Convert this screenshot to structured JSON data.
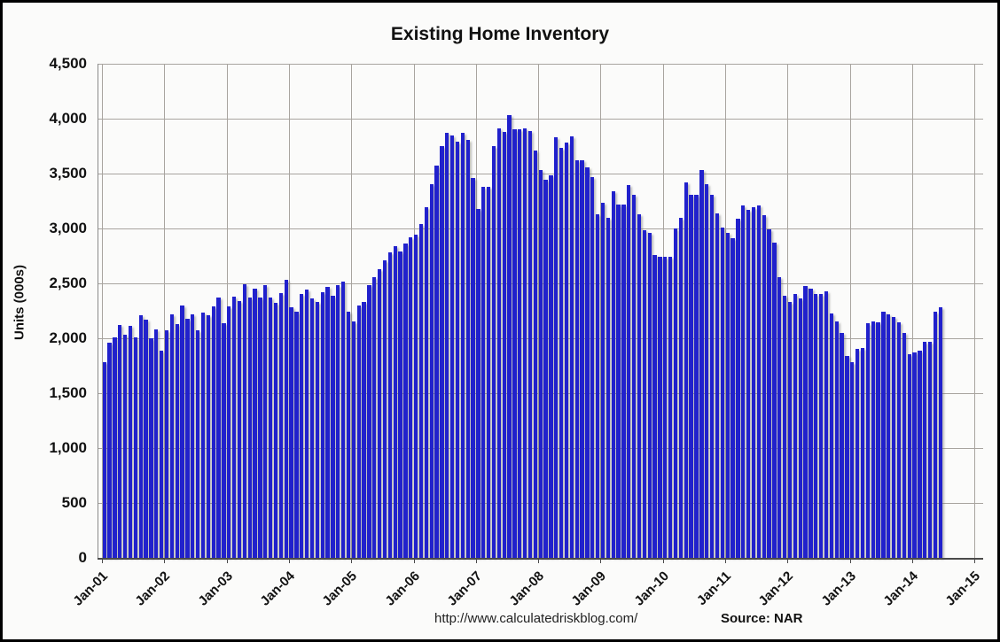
{
  "title": "Existing Home Inventory",
  "y_axis": {
    "label": "Units (000s)",
    "ticks": [
      "4,500",
      "4,000",
      "3,500",
      "3,000",
      "2,500",
      "2,000",
      "1,500",
      "1,000",
      "500",
      "0"
    ]
  },
  "x_axis": {
    "ticks": [
      "Jan-01",
      "Jan-02",
      "Jan-03",
      "Jan-04",
      "Jan-05",
      "Jan-06",
      "Jan-07",
      "Jan-08",
      "Jan-09",
      "Jan-10",
      "Jan-11",
      "Jan-12",
      "Jan-13",
      "Jan-14",
      "Jan-15"
    ]
  },
  "footer": {
    "url": "http://www.calculatedriskblog.com/",
    "source": "Source: NAR"
  },
  "colors": {
    "bar": "#2121cc",
    "grid": "#a8a49f",
    "background": "#fbfbfa",
    "border": "#000000",
    "text": "#111111"
  },
  "chart_data": {
    "type": "bar",
    "title": "Existing Home Inventory",
    "xlabel": "",
    "ylabel": "Units (000s)",
    "ylim": [
      0,
      4500
    ],
    "y_step": 500,
    "grid": true,
    "legend": "none",
    "frequency": "monthly",
    "x_start": "Jan-2001",
    "x_end": "Jun-2014",
    "source_note": "Source: NAR",
    "series": [
      {
        "name": "Existing Home Inventory (thousands of units)",
        "values": [
          1780,
          1960,
          2010,
          2120,
          2030,
          2110,
          2010,
          2210,
          2170,
          2000,
          2080,
          1890,
          2070,
          2220,
          2130,
          2300,
          2180,
          2220,
          2070,
          2230,
          2210,
          2290,
          2370,
          2140,
          2290,
          2380,
          2340,
          2490,
          2370,
          2450,
          2370,
          2480,
          2370,
          2320,
          2410,
          2530,
          2280,
          2240,
          2400,
          2440,
          2360,
          2330,
          2420,
          2470,
          2390,
          2480,
          2520,
          2240,
          2155,
          2300,
          2330,
          2480,
          2560,
          2630,
          2710,
          2780,
          2840,
          2790,
          2860,
          2920,
          2940,
          3040,
          3190,
          3400,
          3575,
          3750,
          3870,
          3850,
          3790,
          3870,
          3810,
          3460,
          3180,
          3380,
          3380,
          3750,
          3915,
          3880,
          4030,
          3905,
          3900,
          3915,
          3885,
          3710,
          3530,
          3440,
          3480,
          3830,
          3730,
          3780,
          3840,
          3620,
          3620,
          3560,
          3470,
          3130,
          3230,
          3095,
          3340,
          3220,
          3220,
          3395,
          3310,
          3130,
          2980,
          2960,
          2755,
          2745,
          2740,
          2740,
          3000,
          3100,
          3420,
          3310,
          3310,
          3530,
          3400,
          3310,
          3140,
          3005,
          2960,
          2915,
          3090,
          3210,
          3170,
          3190,
          3210,
          3120,
          2990,
          2870,
          2560,
          2390,
          2330,
          2400,
          2360,
          2475,
          2450,
          2400,
          2400,
          2430,
          2225,
          2155,
          2050,
          1835,
          1785,
          1900,
          1910,
          2140,
          2150,
          2145,
          2240,
          2215,
          2190,
          2145,
          2050,
          1855,
          1875,
          1890,
          1970,
          1970,
          2240,
          2285
        ]
      }
    ]
  }
}
